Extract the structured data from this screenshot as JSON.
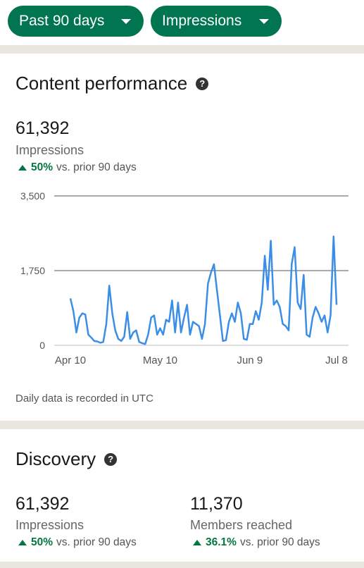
{
  "filters": {
    "range": "Past 90 days",
    "metric": "Impressions"
  },
  "content_performance": {
    "title": "Content performance",
    "value": "61,392",
    "label": "Impressions",
    "change_pct": "50%",
    "change_text": "vs. prior 90 days",
    "footnote": "Daily data is recorded in UTC"
  },
  "discovery": {
    "title": "Discovery",
    "impressions": {
      "value": "61,392",
      "label": "Impressions",
      "change_pct": "50%",
      "change_text": "vs. prior 90 days"
    },
    "members": {
      "value": "11,370",
      "label": "Members reached",
      "change_pct": "36.1%",
      "change_text": "vs. prior 90 days"
    }
  },
  "colors": {
    "accent_green": "#01754f",
    "positive": "#057642",
    "line": "#3a8ee6"
  },
  "chart_data": {
    "type": "line",
    "ylim": [
      0,
      3500
    ],
    "yticks": [
      "3,500",
      "1,750",
      "0"
    ],
    "ytick_values": [
      3500,
      1750,
      0
    ],
    "xticks": [
      "Apr 10",
      "May 10",
      "Jun 9",
      "Jul 8"
    ],
    "xtick_index": [
      0,
      30,
      60,
      89
    ],
    "grid": true,
    "series": [
      {
        "values": [
          1100,
          800,
          300,
          650,
          750,
          720,
          250,
          180,
          100,
          90,
          60,
          80,
          500,
          1400,
          750,
          350,
          150,
          100,
          200,
          780,
          150,
          300,
          350,
          80,
          50,
          30,
          250,
          650,
          700,
          250,
          400,
          250,
          600,
          550,
          1050,
          300,
          1000,
          300,
          650,
          950,
          250,
          550,
          500,
          450,
          150,
          500,
          1450,
          1700,
          1900,
          1300,
          700,
          100,
          120,
          550,
          750,
          550,
          1000,
          750,
          150,
          130,
          500,
          500,
          800,
          600,
          1000,
          2100,
          1300,
          2450,
          950,
          1050,
          900,
          500,
          450,
          350,
          1900,
          2300,
          1000,
          850,
          1650,
          250,
          200,
          650,
          900,
          750,
          550,
          700,
          300,
          700,
          2550,
          950
        ]
      }
    ]
  }
}
